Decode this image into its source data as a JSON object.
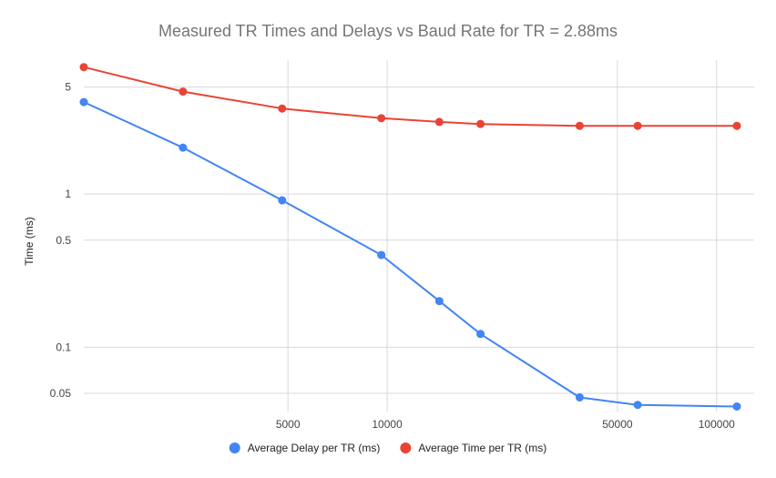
{
  "chart_data": {
    "type": "line",
    "title": "Measured TR Times and Delays vs Baud Rate for TR = 2.88ms",
    "xlabel": "",
    "ylabel": "Time (ms)",
    "x_scale": "log",
    "y_scale": "log",
    "xlim": [
      1200,
      130000
    ],
    "ylim": [
      0.038,
      7.5
    ],
    "x_ticks": [
      5000,
      10000,
      50000,
      100000
    ],
    "x_tick_labels": [
      "5000",
      "10000",
      "50000",
      "100000"
    ],
    "y_ticks": [
      0.05,
      0.1,
      0.5,
      1,
      5
    ],
    "y_tick_labels": [
      "0.05",
      "0.1",
      "0.5",
      "1",
      "5"
    ],
    "grid": true,
    "legend_position": "bottom",
    "series": [
      {
        "name": "Average Delay per TR (ms)",
        "color": "#4285f4",
        "x": [
          1200,
          2400,
          4800,
          9600,
          14400,
          19200,
          38400,
          57600,
          115200
        ],
        "y": [
          3.99,
          2.01,
          0.91,
          0.4,
          0.2,
          0.122,
          0.047,
          0.042,
          0.041
        ]
      },
      {
        "name": "Average Time per TR (ms)",
        "color": "#ea4335",
        "x": [
          1200,
          2400,
          4800,
          9600,
          14400,
          19200,
          38400,
          57600,
          115200
        ],
        "y": [
          6.75,
          4.67,
          3.62,
          3.13,
          2.96,
          2.87,
          2.79,
          2.79,
          2.79
        ]
      }
    ]
  }
}
